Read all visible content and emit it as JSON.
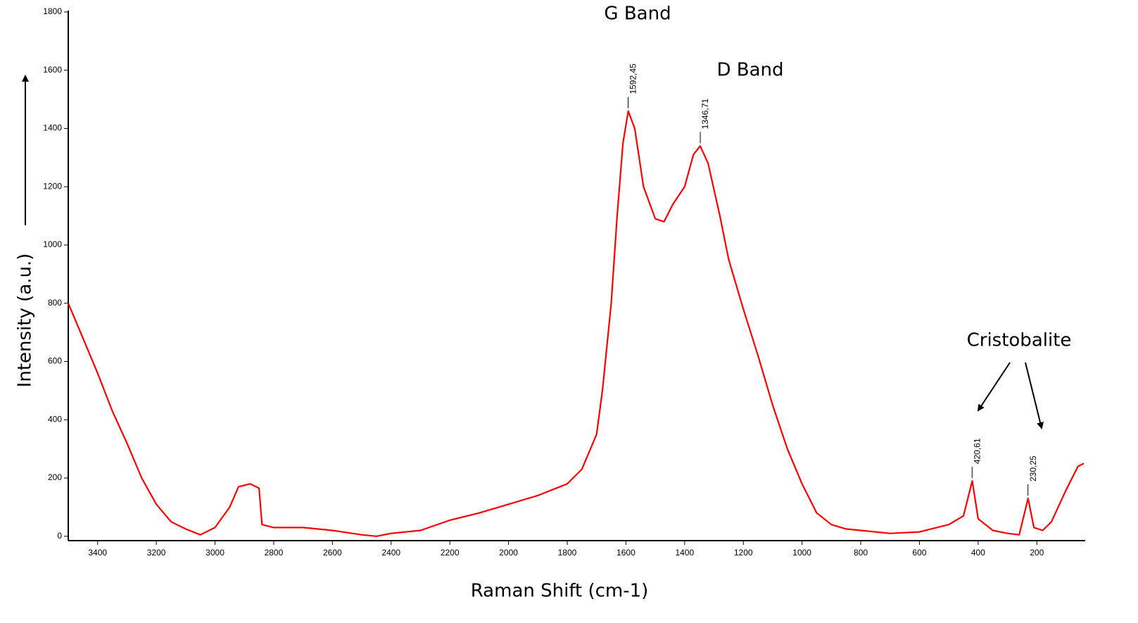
{
  "chart_data": {
    "type": "line",
    "x_label": "Raman Shift (cm-1)",
    "y_label": "Intensity (a.u.)",
    "notes": [
      "G Band",
      "D Band",
      "Cristobalite"
    ],
    "color": "#ff0000",
    "x": [
      3500,
      3450,
      3400,
      3350,
      3300,
      3250,
      3200,
      3150,
      3100,
      3050,
      3000,
      2950,
      2920,
      2880,
      2850,
      2840,
      2800,
      2700,
      2600,
      2500,
      2450,
      2400,
      2300,
      2200,
      2100,
      2000,
      1900,
      1800,
      1750,
      1700,
      1680,
      1650,
      1630,
      1610,
      1592,
      1570,
      1540,
      1500,
      1470,
      1440,
      1400,
      1370,
      1347,
      1320,
      1280,
      1250,
      1200,
      1150,
      1100,
      1050,
      1000,
      950,
      900,
      850,
      800,
      700,
      600,
      500,
      450,
      420,
      400,
      350,
      300,
      260,
      230,
      210,
      180,
      150,
      100,
      60,
      40
    ],
    "values": [
      800,
      680,
      560,
      430,
      320,
      200,
      110,
      50,
      25,
      5,
      30,
      100,
      170,
      180,
      165,
      40,
      30,
      30,
      20,
      5,
      0,
      10,
      20,
      55,
      80,
      110,
      140,
      180,
      230,
      350,
      500,
      800,
      1100,
      1350,
      1460,
      1400,
      1200,
      1090,
      1080,
      1140,
      1200,
      1310,
      1340,
      1280,
      1100,
      950,
      780,
      620,
      450,
      300,
      180,
      80,
      40,
      25,
      20,
      10,
      15,
      40,
      70,
      190,
      60,
      20,
      10,
      5,
      130,
      30,
      20,
      50,
      160,
      240,
      250
    ],
    "annotations": [
      {
        "x": 1592.45,
        "y": 1460,
        "label": "1592,45"
      },
      {
        "x": 1346.71,
        "y": 1340,
        "label": "1346,71"
      },
      {
        "x": 420.61,
        "y": 190,
        "label": "420,61"
      },
      {
        "x": 230.25,
        "y": 130,
        "label": "230,25"
      }
    ],
    "xlim": [
      3500,
      40
    ],
    "ylim": [
      -15,
      1800
    ],
    "xticks": [
      3400,
      3200,
      3000,
      2800,
      2600,
      2400,
      2200,
      2000,
      1800,
      1600,
      1400,
      1200,
      1000,
      800,
      600,
      400,
      200
    ],
    "yticks": [
      0,
      200,
      400,
      600,
      800,
      1000,
      1200,
      1400,
      1600,
      1800
    ]
  }
}
